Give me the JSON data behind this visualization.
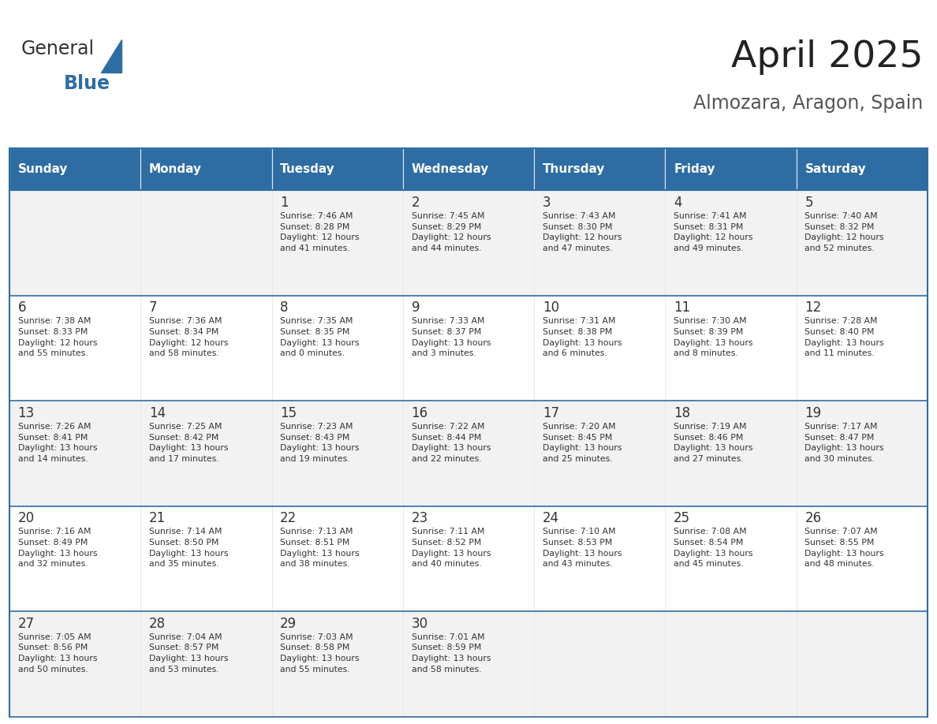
{
  "title": "April 2025",
  "subtitle": "Almozara, Aragon, Spain",
  "header_bg": "#2E6DA4",
  "header_text": "#FFFFFF",
  "row_bg_odd": "#F2F2F2",
  "row_bg_even": "#FFFFFF",
  "cell_text": "#333333",
  "border_color": "#2E6DA4",
  "days_of_week": [
    "Sunday",
    "Monday",
    "Tuesday",
    "Wednesday",
    "Thursday",
    "Friday",
    "Saturday"
  ],
  "weeks": [
    [
      {
        "day": "",
        "info": ""
      },
      {
        "day": "",
        "info": ""
      },
      {
        "day": "1",
        "info": "Sunrise: 7:46 AM\nSunset: 8:28 PM\nDaylight: 12 hours\nand 41 minutes."
      },
      {
        "day": "2",
        "info": "Sunrise: 7:45 AM\nSunset: 8:29 PM\nDaylight: 12 hours\nand 44 minutes."
      },
      {
        "day": "3",
        "info": "Sunrise: 7:43 AM\nSunset: 8:30 PM\nDaylight: 12 hours\nand 47 minutes."
      },
      {
        "day": "4",
        "info": "Sunrise: 7:41 AM\nSunset: 8:31 PM\nDaylight: 12 hours\nand 49 minutes."
      },
      {
        "day": "5",
        "info": "Sunrise: 7:40 AM\nSunset: 8:32 PM\nDaylight: 12 hours\nand 52 minutes."
      }
    ],
    [
      {
        "day": "6",
        "info": "Sunrise: 7:38 AM\nSunset: 8:33 PM\nDaylight: 12 hours\nand 55 minutes."
      },
      {
        "day": "7",
        "info": "Sunrise: 7:36 AM\nSunset: 8:34 PM\nDaylight: 12 hours\nand 58 minutes."
      },
      {
        "day": "8",
        "info": "Sunrise: 7:35 AM\nSunset: 8:35 PM\nDaylight: 13 hours\nand 0 minutes."
      },
      {
        "day": "9",
        "info": "Sunrise: 7:33 AM\nSunset: 8:37 PM\nDaylight: 13 hours\nand 3 minutes."
      },
      {
        "day": "10",
        "info": "Sunrise: 7:31 AM\nSunset: 8:38 PM\nDaylight: 13 hours\nand 6 minutes."
      },
      {
        "day": "11",
        "info": "Sunrise: 7:30 AM\nSunset: 8:39 PM\nDaylight: 13 hours\nand 8 minutes."
      },
      {
        "day": "12",
        "info": "Sunrise: 7:28 AM\nSunset: 8:40 PM\nDaylight: 13 hours\nand 11 minutes."
      }
    ],
    [
      {
        "day": "13",
        "info": "Sunrise: 7:26 AM\nSunset: 8:41 PM\nDaylight: 13 hours\nand 14 minutes."
      },
      {
        "day": "14",
        "info": "Sunrise: 7:25 AM\nSunset: 8:42 PM\nDaylight: 13 hours\nand 17 minutes."
      },
      {
        "day": "15",
        "info": "Sunrise: 7:23 AM\nSunset: 8:43 PM\nDaylight: 13 hours\nand 19 minutes."
      },
      {
        "day": "16",
        "info": "Sunrise: 7:22 AM\nSunset: 8:44 PM\nDaylight: 13 hours\nand 22 minutes."
      },
      {
        "day": "17",
        "info": "Sunrise: 7:20 AM\nSunset: 8:45 PM\nDaylight: 13 hours\nand 25 minutes."
      },
      {
        "day": "18",
        "info": "Sunrise: 7:19 AM\nSunset: 8:46 PM\nDaylight: 13 hours\nand 27 minutes."
      },
      {
        "day": "19",
        "info": "Sunrise: 7:17 AM\nSunset: 8:47 PM\nDaylight: 13 hours\nand 30 minutes."
      }
    ],
    [
      {
        "day": "20",
        "info": "Sunrise: 7:16 AM\nSunset: 8:49 PM\nDaylight: 13 hours\nand 32 minutes."
      },
      {
        "day": "21",
        "info": "Sunrise: 7:14 AM\nSunset: 8:50 PM\nDaylight: 13 hours\nand 35 minutes."
      },
      {
        "day": "22",
        "info": "Sunrise: 7:13 AM\nSunset: 8:51 PM\nDaylight: 13 hours\nand 38 minutes."
      },
      {
        "day": "23",
        "info": "Sunrise: 7:11 AM\nSunset: 8:52 PM\nDaylight: 13 hours\nand 40 minutes."
      },
      {
        "day": "24",
        "info": "Sunrise: 7:10 AM\nSunset: 8:53 PM\nDaylight: 13 hours\nand 43 minutes."
      },
      {
        "day": "25",
        "info": "Sunrise: 7:08 AM\nSunset: 8:54 PM\nDaylight: 13 hours\nand 45 minutes."
      },
      {
        "day": "26",
        "info": "Sunrise: 7:07 AM\nSunset: 8:55 PM\nDaylight: 13 hours\nand 48 minutes."
      }
    ],
    [
      {
        "day": "27",
        "info": "Sunrise: 7:05 AM\nSunset: 8:56 PM\nDaylight: 13 hours\nand 50 minutes."
      },
      {
        "day": "28",
        "info": "Sunrise: 7:04 AM\nSunset: 8:57 PM\nDaylight: 13 hours\nand 53 minutes."
      },
      {
        "day": "29",
        "info": "Sunrise: 7:03 AM\nSunset: 8:58 PM\nDaylight: 13 hours\nand 55 minutes."
      },
      {
        "day": "30",
        "info": "Sunrise: 7:01 AM\nSunset: 8:59 PM\nDaylight: 13 hours\nand 58 minutes."
      },
      {
        "day": "",
        "info": ""
      },
      {
        "day": "",
        "info": ""
      },
      {
        "day": "",
        "info": ""
      }
    ]
  ],
  "logo_general_color": "#333333",
  "logo_blue_color": "#2E6DA4",
  "figsize": [
    11.88,
    9.18
  ],
  "dpi": 100
}
